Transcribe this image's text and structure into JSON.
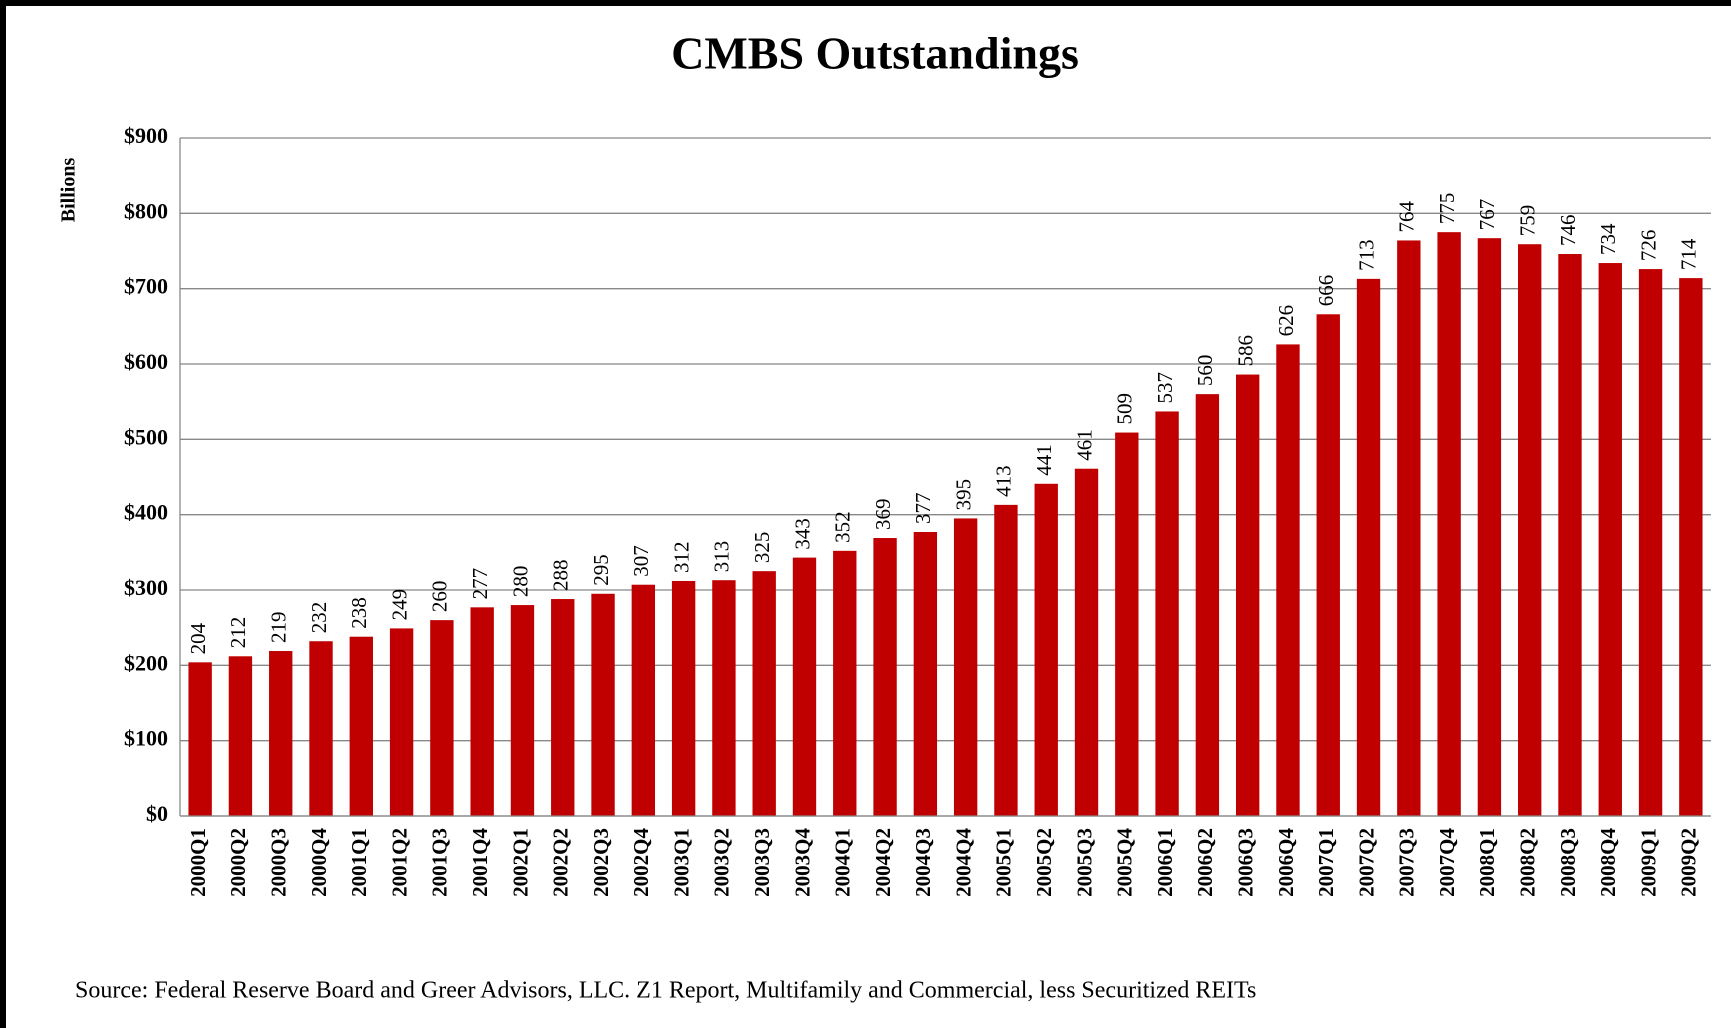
{
  "chart_data": {
    "type": "bar",
    "title": "CMBS Outstandings",
    "y_label": "Billions",
    "source": "Source: Federal Reserve Board and Greer Advisors, LLC. Z1 Report, Multifamily and Commercial, less Securitized REITs",
    "categories": [
      "2000Q1",
      "2000Q2",
      "2000Q3",
      "2000Q4",
      "2001Q1",
      "2001Q2",
      "2001Q3",
      "2001Q4",
      "2002Q1",
      "2002Q2",
      "2002Q3",
      "2002Q4",
      "2003Q1",
      "2003Q2",
      "2003Q3",
      "2003Q4",
      "2004Q1",
      "2004Q2",
      "2004Q3",
      "2004Q4",
      "2005Q1",
      "2005Q2",
      "2005Q3",
      "2005Q4",
      "2006Q1",
      "2006Q2",
      "2006Q3",
      "2006Q4",
      "2007Q1",
      "2007Q2",
      "2007Q3",
      "2007Q4",
      "2008Q1",
      "2008Q2",
      "2008Q3",
      "2008Q4",
      "2009Q1",
      "2009Q2"
    ],
    "values": [
      204,
      212,
      219,
      232,
      238,
      249,
      260,
      277,
      280,
      288,
      295,
      307,
      312,
      313,
      325,
      343,
      352,
      369,
      377,
      395,
      413,
      441,
      461,
      509,
      537,
      560,
      586,
      626,
      666,
      713,
      764,
      775,
      767,
      759,
      746,
      734,
      726,
      714
    ],
    "color": "#c00000",
    "ylim": [
      0,
      900
    ],
    "yticks": [
      {
        "value": 0,
        "label": "$0"
      },
      {
        "value": 100,
        "label": "$100"
      },
      {
        "value": 200,
        "label": "$200"
      },
      {
        "value": 300,
        "label": "$300"
      },
      {
        "value": 400,
        "label": "$400"
      },
      {
        "value": 500,
        "label": "$500"
      },
      {
        "value": 600,
        "label": "$600"
      },
      {
        "value": 700,
        "label": "$700"
      },
      {
        "value": 800,
        "label": "$800"
      },
      {
        "value": 900,
        "label": "$900"
      }
    ],
    "grid": true
  }
}
